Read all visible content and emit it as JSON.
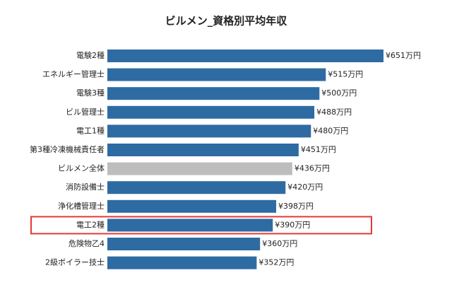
{
  "chart_data": {
    "type": "barh",
    "title": "ビルメン_資格別平均年収",
    "categories": [
      "電験2種",
      "エネルギー管理士",
      "電験3種",
      "ビル管理士",
      "電工1種",
      "第3種冷凍機械責任者",
      "ビルメン全体",
      "消防設備士",
      "浄化槽管理士",
      "電工2種",
      "危険物乙4",
      "2級ボイラー技士"
    ],
    "values": [
      651,
      515,
      500,
      488,
      480,
      451,
      436,
      420,
      398,
      390,
      360,
      352
    ],
    "value_labels": [
      "¥651万円",
      "¥515万円",
      "¥500万円",
      "¥488万円",
      "¥480万円",
      "¥451万円",
      "¥436万円",
      "¥420万円",
      "¥398万円",
      "¥390万円",
      "¥360万円",
      "¥352万円"
    ],
    "colors": [
      "#2f6ba3",
      "#2f6ba3",
      "#2f6ba3",
      "#2f6ba3",
      "#2f6ba3",
      "#2f6ba3",
      "#bdbdbd",
      "#2f6ba3",
      "#2f6ba3",
      "#2f6ba3",
      "#2f6ba3",
      "#2f6ba3"
    ],
    "highlight": {
      "category_index": 9,
      "color": "#e53935"
    }
  }
}
